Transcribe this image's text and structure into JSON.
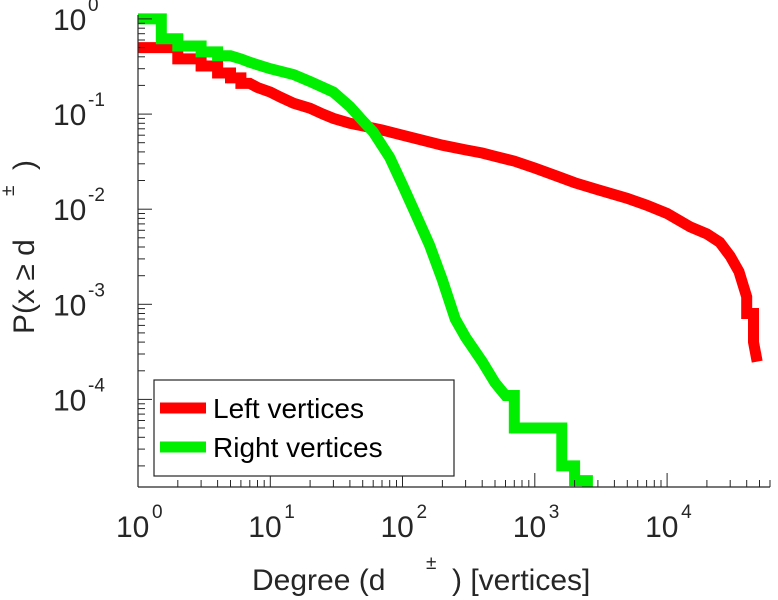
{
  "chart_data": {
    "type": "line",
    "scale": "log-log",
    "title": "",
    "xlabel": "Degree (d ±) [vertices]",
    "xlabel_main": "Degree (d",
    "xlabel_sup": "±",
    "xlabel_tail": ") [vertices]",
    "ylabel": "P(x ≥ d±)",
    "ylabel_main": "P(x ≥ d",
    "ylabel_sup": "±",
    "ylabel_tail": ")",
    "xlim": [
      1,
      60000
    ],
    "ylim": [
      1.2e-05,
      1.1
    ],
    "x_ticks": [
      {
        "value": 1,
        "base": "10",
        "exp": "0"
      },
      {
        "value": 10,
        "base": "10",
        "exp": "1"
      },
      {
        "value": 100,
        "base": "10",
        "exp": "2"
      },
      {
        "value": 1000,
        "base": "10",
        "exp": "3"
      },
      {
        "value": 10000,
        "base": "10",
        "exp": "4"
      }
    ],
    "y_ticks": [
      {
        "value": 1,
        "base": "10",
        "exp": "0"
      },
      {
        "value": 0.1,
        "base": "10",
        "exp": "-1"
      },
      {
        "value": 0.01,
        "base": "10",
        "exp": "-2"
      },
      {
        "value": 0.001,
        "base": "10",
        "exp": "-3"
      },
      {
        "value": 0.0001,
        "base": "10",
        "exp": "-4"
      }
    ],
    "grid": false,
    "legend_position": "bottom-left",
    "series": [
      {
        "name": "Left vertices",
        "color": "#ff0000",
        "points": [
          [
            1,
            0.5
          ],
          [
            2,
            0.5
          ],
          [
            2,
            0.38
          ],
          [
            3,
            0.38
          ],
          [
            3,
            0.32
          ],
          [
            4,
            0.32
          ],
          [
            4,
            0.27
          ],
          [
            5,
            0.27
          ],
          [
            5,
            0.24
          ],
          [
            6,
            0.24
          ],
          [
            6,
            0.21
          ],
          [
            7,
            0.21
          ],
          [
            8,
            0.19
          ],
          [
            10,
            0.17
          ],
          [
            12,
            0.15
          ],
          [
            15,
            0.13
          ],
          [
            20,
            0.115
          ],
          [
            25,
            0.1
          ],
          [
            30,
            0.09
          ],
          [
            40,
            0.08
          ],
          [
            50,
            0.075
          ],
          [
            70,
            0.068
          ],
          [
            100,
            0.06
          ],
          [
            150,
            0.052
          ],
          [
            200,
            0.047
          ],
          [
            300,
            0.042
          ],
          [
            400,
            0.039
          ],
          [
            500,
            0.036
          ],
          [
            700,
            0.032
          ],
          [
            1000,
            0.027
          ],
          [
            1500,
            0.022
          ],
          [
            2000,
            0.019
          ],
          [
            3000,
            0.016
          ],
          [
            5000,
            0.013
          ],
          [
            7000,
            0.011
          ],
          [
            10000,
            0.009
          ],
          [
            15000,
            0.0065
          ],
          [
            20000,
            0.0055
          ],
          [
            25000,
            0.0045
          ],
          [
            30000,
            0.0032
          ],
          [
            35000,
            0.0022
          ],
          [
            40000,
            0.0012
          ],
          [
            40000,
            0.0008
          ],
          [
            45000,
            0.0008
          ],
          [
            45000,
            0.0004
          ],
          [
            48000,
            0.00025
          ]
        ]
      },
      {
        "name": "Right vertices",
        "color": "#00ee00",
        "points": [
          [
            1,
            1.0
          ],
          [
            1.5,
            1.0
          ],
          [
            1.5,
            0.62
          ],
          [
            2,
            0.62
          ],
          [
            2,
            0.52
          ],
          [
            3,
            0.52
          ],
          [
            3,
            0.45
          ],
          [
            4,
            0.45
          ],
          [
            4,
            0.41
          ],
          [
            5,
            0.41
          ],
          [
            6,
            0.38
          ],
          [
            7,
            0.35
          ],
          [
            8,
            0.33
          ],
          [
            10,
            0.3
          ],
          [
            15,
            0.26
          ],
          [
            20,
            0.22
          ],
          [
            30,
            0.17
          ],
          [
            40,
            0.12
          ],
          [
            50,
            0.085
          ],
          [
            60,
            0.065
          ],
          [
            80,
            0.035
          ],
          [
            100,
            0.018
          ],
          [
            130,
            0.008
          ],
          [
            160,
            0.0042
          ],
          [
            200,
            0.0018
          ],
          [
            250,
            0.0007
          ],
          [
            300,
            0.00045
          ],
          [
            400,
            0.00025
          ],
          [
            500,
            0.00015
          ],
          [
            600,
            0.00011
          ],
          [
            700,
            0.00011
          ],
          [
            700,
            5e-05
          ],
          [
            1600,
            5e-05
          ],
          [
            1600,
            2e-05
          ],
          [
            2000,
            2e-05
          ],
          [
            2000,
            1.4e-05
          ],
          [
            2500,
            1.4e-05
          ],
          [
            2500,
            1.2e-05
          ]
        ]
      }
    ]
  }
}
